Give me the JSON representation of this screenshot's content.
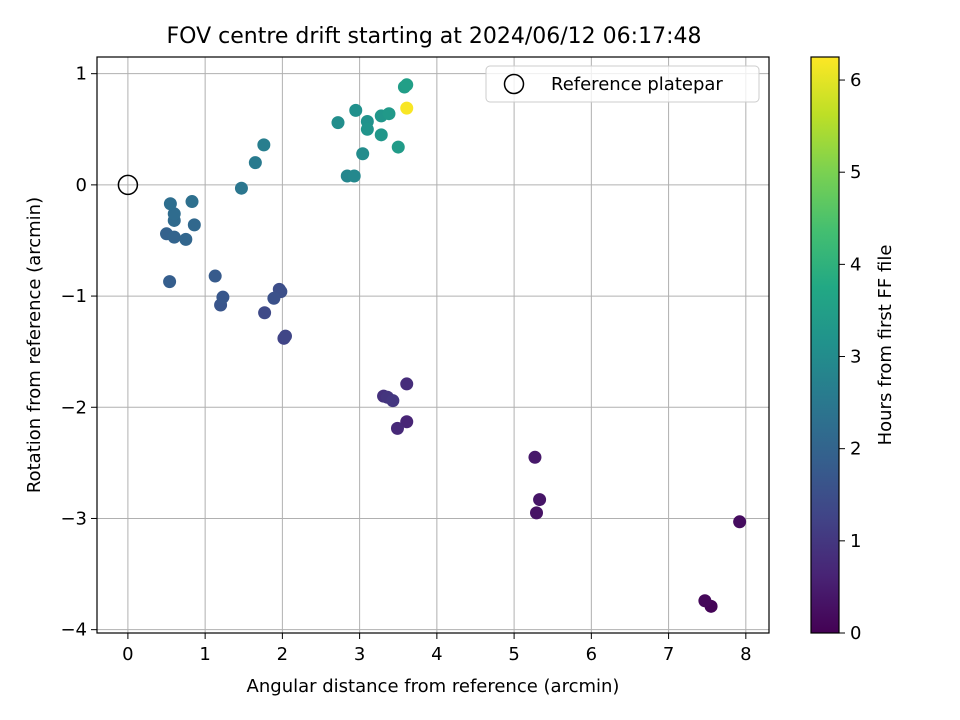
{
  "chart_data": {
    "type": "scatter",
    "title": "FOV centre drift starting at 2024/06/12 06:17:48",
    "xlabel": "Angular distance from reference (arcmin)",
    "ylabel": "Rotation from reference (arcmin)",
    "xlim": [
      -0.4,
      8.3
    ],
    "ylim": [
      -4.03,
      1.15
    ],
    "xticks": [
      0,
      1,
      2,
      3,
      4,
      5,
      6,
      7,
      8
    ],
    "yticks": [
      -4,
      -3,
      -2,
      -1,
      0,
      1
    ],
    "grid": true,
    "legend": {
      "position": "top-right",
      "label": "Reference platepar"
    },
    "reference_point": {
      "x": 0,
      "y": 0
    },
    "colorbar": {
      "label": "Hours from first FF file",
      "colormap": "viridis",
      "range": [
        0,
        6.25
      ],
      "ticks": [
        0,
        1,
        2,
        3,
        4,
        5,
        6
      ]
    },
    "points": [
      {
        "x": 7.55,
        "y": -3.79,
        "c": 0.05
      },
      {
        "x": 7.47,
        "y": -3.74,
        "c": 0.12
      },
      {
        "x": 7.92,
        "y": -3.03,
        "c": 0.2
      },
      {
        "x": 5.29,
        "y": -2.95,
        "c": 0.3
      },
      {
        "x": 5.33,
        "y": -2.83,
        "c": 0.36
      },
      {
        "x": 5.27,
        "y": -2.45,
        "c": 0.42
      },
      {
        "x": 3.61,
        "y": -2.13,
        "c": 0.65
      },
      {
        "x": 3.49,
        "y": -2.19,
        "c": 0.72
      },
      {
        "x": 3.61,
        "y": -1.79,
        "c": 0.8
      },
      {
        "x": 3.31,
        "y": -1.9,
        "c": 0.88
      },
      {
        "x": 3.36,
        "y": -1.91,
        "c": 0.95
      },
      {
        "x": 3.43,
        "y": -1.94,
        "c": 1.0
      },
      {
        "x": 2.02,
        "y": -1.38,
        "c": 1.25
      },
      {
        "x": 2.04,
        "y": -1.36,
        "c": 1.3
      },
      {
        "x": 1.77,
        "y": -1.15,
        "c": 1.38
      },
      {
        "x": 1.96,
        "y": -0.94,
        "c": 1.45
      },
      {
        "x": 1.98,
        "y": -0.96,
        "c": 1.5
      },
      {
        "x": 1.89,
        "y": -1.02,
        "c": 1.55
      },
      {
        "x": 1.2,
        "y": -1.08,
        "c": 1.65
      },
      {
        "x": 1.23,
        "y": -1.01,
        "c": 1.7
      },
      {
        "x": 1.13,
        "y": -0.82,
        "c": 1.78
      },
      {
        "x": 0.54,
        "y": -0.87,
        "c": 1.85
      },
      {
        "x": 0.5,
        "y": -0.44,
        "c": 1.95
      },
      {
        "x": 0.6,
        "y": -0.47,
        "c": 2.0
      },
      {
        "x": 0.75,
        "y": -0.49,
        "c": 2.05
      },
      {
        "x": 0.86,
        "y": -0.36,
        "c": 2.1
      },
      {
        "x": 0.6,
        "y": -0.32,
        "c": 2.15
      },
      {
        "x": 0.6,
        "y": -0.26,
        "c": 2.2
      },
      {
        "x": 0.55,
        "y": -0.17,
        "c": 2.25
      },
      {
        "x": 0.83,
        "y": -0.15,
        "c": 2.3
      },
      {
        "x": 1.47,
        "y": -0.03,
        "c": 2.45
      },
      {
        "x": 1.65,
        "y": 0.2,
        "c": 2.55
      },
      {
        "x": 1.76,
        "y": 0.36,
        "c": 2.65
      },
      {
        "x": 2.84,
        "y": 0.08,
        "c": 2.85
      },
      {
        "x": 2.93,
        "y": 0.08,
        "c": 2.9
      },
      {
        "x": 3.04,
        "y": 0.28,
        "c": 3.0
      },
      {
        "x": 2.72,
        "y": 0.56,
        "c": 3.05
      },
      {
        "x": 2.95,
        "y": 0.67,
        "c": 3.1
      },
      {
        "x": 3.1,
        "y": 0.57,
        "c": 3.15
      },
      {
        "x": 3.1,
        "y": 0.5,
        "c": 3.2
      },
      {
        "x": 3.28,
        "y": 0.62,
        "c": 3.25
      },
      {
        "x": 3.28,
        "y": 0.45,
        "c": 3.3
      },
      {
        "x": 3.38,
        "y": 0.64,
        "c": 3.35
      },
      {
        "x": 3.5,
        "y": 0.34,
        "c": 3.4
      },
      {
        "x": 3.58,
        "y": 0.88,
        "c": 3.45
      },
      {
        "x": 3.61,
        "y": 0.9,
        "c": 3.5
      },
      {
        "x": 3.61,
        "y": 0.69,
        "c": 6.2
      }
    ]
  }
}
